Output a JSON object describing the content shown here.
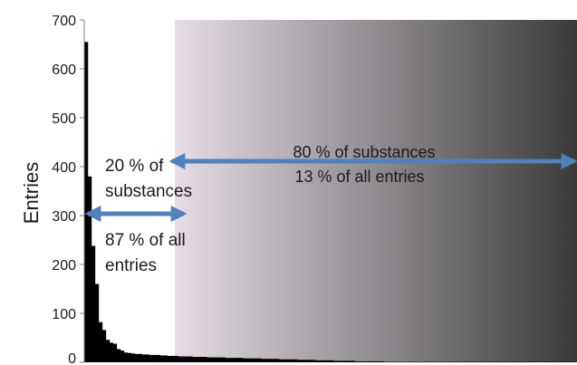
{
  "chart_data": {
    "type": "bar",
    "ylabel": "Entries",
    "xlabel": "",
    "title": "",
    "ylim": [
      0,
      700
    ],
    "yticks": [
      0,
      100,
      200,
      300,
      400,
      500,
      600,
      700
    ],
    "ytick_labels": [
      "0",
      "100",
      "200",
      "300",
      "400",
      "500",
      "600",
      "700"
    ],
    "grid": false,
    "bar_color": "#000000",
    "arrow_color": "#4f81bd",
    "shade_gradient": [
      "#e6dde6",
      "#3a3a3a"
    ],
    "values": [
      655,
      380,
      238,
      160,
      82,
      66,
      46,
      40,
      38,
      27,
      24,
      20,
      19,
      18,
      17,
      17,
      16,
      16,
      15,
      15,
      15,
      14,
      14,
      13,
      13,
      13,
      12,
      12,
      12,
      12,
      11,
      11,
      11,
      11,
      10,
      10,
      10,
      10,
      10,
      9,
      9,
      9,
      9,
      9,
      8,
      8,
      8,
      8,
      8,
      7,
      7,
      7,
      7,
      7,
      6,
      6,
      6,
      6,
      6,
      5,
      5,
      5,
      5,
      5,
      4,
      4,
      4,
      4,
      4,
      3,
      3,
      3,
      3,
      3,
      3,
      2,
      2,
      2,
      2,
      2,
      2,
      2,
      2,
      1,
      1,
      1,
      1,
      1,
      1,
      1,
      1,
      1,
      1,
      1,
      1,
      1,
      1,
      1,
      1,
      1,
      1,
      1,
      1,
      1,
      1,
      1,
      1,
      1,
      1,
      1,
      1,
      1,
      1,
      1,
      1,
      1,
      1,
      1,
      1,
      1,
      1,
      1,
      1,
      1,
      1,
      1,
      1,
      1,
      1,
      1,
      1,
      1,
      1,
      1,
      1,
      1
    ],
    "annotations": {
      "left_line1": "20 % of",
      "left_line2": "substances",
      "left_line3": "87 % of all",
      "left_line4": "entries",
      "right_line1": "80 % of substances",
      "right_line2": "13 % of all entries"
    }
  }
}
